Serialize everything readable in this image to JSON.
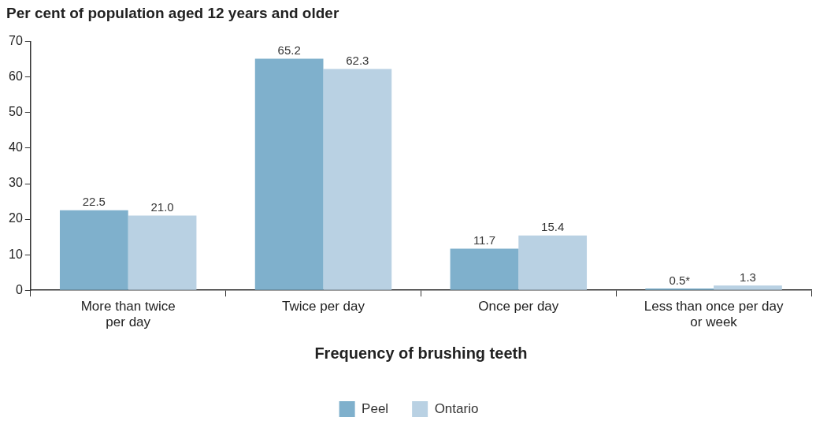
{
  "chart_data": {
    "type": "bar",
    "title": "Per cent of population aged 12 years and older",
    "xlabel": "Frequency of brushing teeth",
    "categories": [
      "More than twice per day",
      "Twice per day",
      "Once per day",
      "Less than once per day or week"
    ],
    "series": [
      {
        "name": "Peel",
        "color": "#7fb0cc",
        "values": [
          22.5,
          65.2,
          11.7,
          0.5
        ],
        "value_labels": [
          "22.5",
          "65.2",
          "11.7",
          "0.5*"
        ]
      },
      {
        "name": "Ontario",
        "color": "#b9d1e3",
        "values": [
          21.0,
          62.3,
          15.4,
          1.3
        ],
        "value_labels": [
          "21.0",
          "62.3",
          "15.4",
          "1.3"
        ]
      }
    ],
    "ylim": [
      0,
      70
    ],
    "yticks": [
      0,
      10,
      20,
      30,
      40,
      50,
      60,
      70
    ],
    "grid": false,
    "legend": "bottom"
  }
}
